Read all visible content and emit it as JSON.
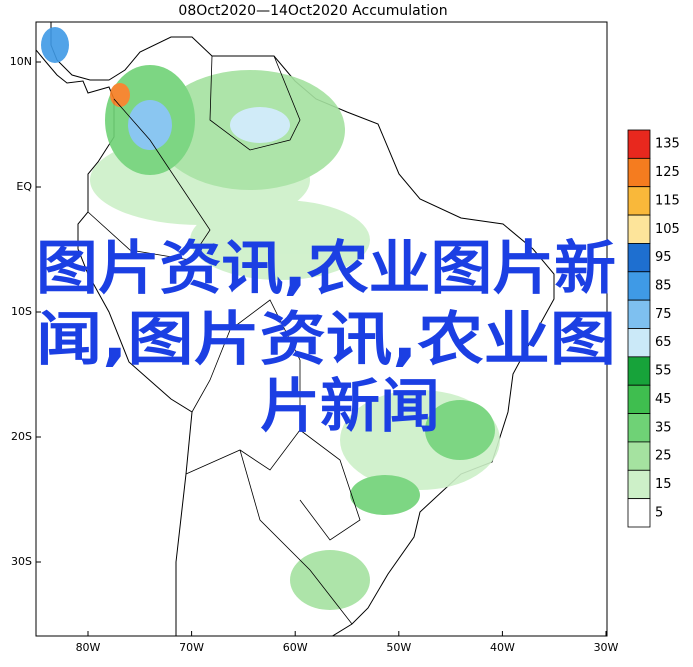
{
  "map": {
    "title": "08Oct2020—14Oct2020 Accumulation",
    "lat_labels": [
      "10N",
      "EQ",
      "10S",
      "20S",
      "30S"
    ],
    "lon_labels": [
      "80W",
      "70W",
      "60W",
      "50W",
      "40W",
      "30W"
    ],
    "legend": {
      "labels": [
        "135",
        "125",
        "115",
        "105",
        "95",
        "85",
        "75",
        "65",
        "55",
        "45",
        "35",
        "25",
        "15",
        "5"
      ],
      "colors": [
        "#e8281e",
        "#f57c1f",
        "#f9b83a",
        "#fde49a",
        "#1e6fd0",
        "#3f9ae6",
        "#7ec0f0",
        "#cbe9f8",
        "#17a33a",
        "#3fbe4f",
        "#6fd276",
        "#a5e2a0",
        "#cdf0c8",
        "#ffffff"
      ]
    }
  },
  "overlay": {
    "lines": [
      "图片资讯,农业图片新",
      "闻,图片资讯,农业图",
      "片新闻"
    ]
  }
}
